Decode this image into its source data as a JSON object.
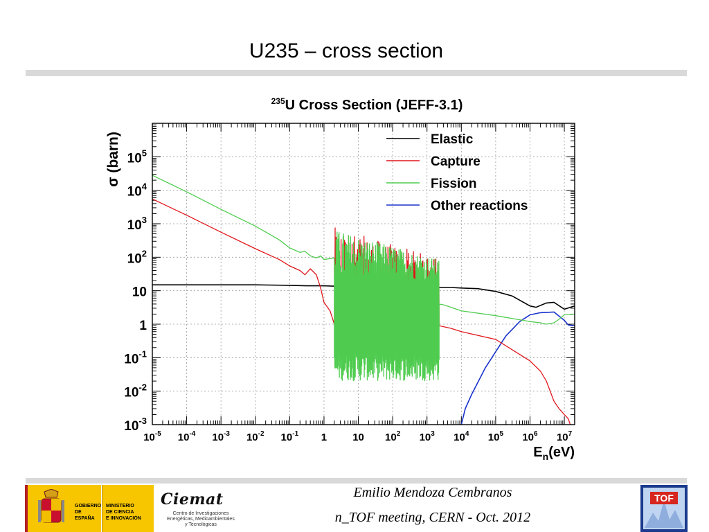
{
  "slide": {
    "title": "U235 – cross section",
    "author": "Emilio Mendoza Cembranos",
    "meeting": "n_TOF meeting, CERN - Oct. 2012",
    "logos": {
      "gobierno": "GOBIERNO\nDE ESPAÑA",
      "ministerio": "MINISTERIO\nDE CIENCIA\nE INNOVACIÓN",
      "ciemat": "Ciemat",
      "ciemat_sub": "Centro de Investigaciones\nEnergéticas, Medioambientales\ny Tecnológicas",
      "tof": "TOF"
    }
  },
  "chart_data": {
    "type": "line",
    "title_sup": "235",
    "title": "U Cross Section (JEFF-3.1)",
    "xlabel_main": "E",
    "xlabel_sub": "n",
    "xlabel_unit": "(eV)",
    "ylabel_symbol": "σ",
    "ylabel_unit": "(barn)",
    "x_scale": "log",
    "y_scale": "log",
    "xlim": [
      1e-05,
      20000000.0
    ],
    "ylim": [
      0.001,
      1000000.0
    ],
    "grid": true,
    "legend_position": "top-right",
    "x_ticks": [
      {
        "base": "10",
        "exp": "-5",
        "v": 1e-05
      },
      {
        "base": "10",
        "exp": "-4",
        "v": 0.0001
      },
      {
        "base": "10",
        "exp": "-3",
        "v": 0.001
      },
      {
        "base": "10",
        "exp": "-2",
        "v": 0.01
      },
      {
        "base": "10",
        "exp": "-1",
        "v": 0.1
      },
      {
        "base": "1",
        "exp": "",
        "v": 1
      },
      {
        "base": "10",
        "exp": "",
        "v": 10
      },
      {
        "base": "10",
        "exp": "2",
        "v": 100
      },
      {
        "base": "10",
        "exp": "3",
        "v": 1000
      },
      {
        "base": "10",
        "exp": "4",
        "v": 10000.0
      },
      {
        "base": "10",
        "exp": "5",
        "v": 100000.0
      },
      {
        "base": "10",
        "exp": "6",
        "v": 1000000.0
      },
      {
        "base": "10",
        "exp": "7",
        "v": 10000000.0
      }
    ],
    "y_ticks": [
      {
        "base": "10",
        "exp": "-3",
        "v": 0.001
      },
      {
        "base": "10",
        "exp": "-2",
        "v": 0.01
      },
      {
        "base": "10",
        "exp": "-1",
        "v": 0.1
      },
      {
        "base": "1",
        "exp": "",
        "v": 1
      },
      {
        "base": "10",
        "exp": "",
        "v": 10
      },
      {
        "base": "10",
        "exp": "2",
        "v": 100
      },
      {
        "base": "10",
        "exp": "3",
        "v": 1000
      },
      {
        "base": "10",
        "exp": "4",
        "v": 10000.0
      },
      {
        "base": "10",
        "exp": "5",
        "v": 100000.0
      }
    ],
    "series": [
      {
        "name": "Elastic",
        "color": "#000000",
        "x": [
          1e-05,
          0.001,
          0.01,
          0.1,
          0.3,
          1,
          3,
          10,
          100,
          1000,
          2250,
          5000,
          10000.0,
          30000.0,
          100000.0,
          300000.0,
          1000000.0,
          1500000.0,
          3000000.0,
          5000000.0,
          10000000.0,
          20000000.0
        ],
        "y": [
          15,
          15,
          15,
          14.5,
          14,
          14,
          13.5,
          13,
          13,
          12.5,
          12.5,
          12.5,
          12,
          11.5,
          9.5,
          7,
          3.5,
          3.2,
          4.3,
          4.5,
          2.8,
          3.5
        ]
      },
      {
        "name": "Capture",
        "color": "#e0161b",
        "x": [
          1e-05,
          0.0001,
          0.001,
          0.01,
          0.05,
          0.1,
          0.2,
          0.28,
          0.4,
          0.6,
          0.8,
          1,
          1.5,
          2.5,
          5,
          10,
          100,
          1000,
          2250,
          5000,
          10000.0,
          100000.0,
          1000000.0,
          2000000.0,
          3000000.0,
          5000000.0,
          7000000.0,
          10000000.0,
          13000000.0,
          16000000.0
        ],
        "y": [
          5500,
          1800,
          560,
          180,
          85,
          55,
          40,
          30,
          45,
          30,
          12,
          4.5,
          2.5,
          3,
          2.5,
          2.2,
          1.5,
          1.1,
          0.9,
          0.75,
          0.6,
          0.35,
          0.08,
          0.04,
          0.02,
          0.005,
          0.003,
          0.002,
          0.0015,
          0.0008
        ]
      },
      {
        "name": "Fission",
        "color": "#4fcc4f",
        "x": [
          1e-05,
          0.0001,
          0.001,
          0.01,
          0.05,
          0.1,
          0.2,
          0.28,
          0.4,
          0.6,
          0.8,
          1,
          2,
          2250,
          3000,
          5000,
          10000.0,
          100000.0,
          1000000.0,
          2000000.0,
          3000000.0,
          5000000.0,
          7000000.0,
          10000000.0,
          20000000.0
        ],
        "y": [
          28000,
          9000,
          2700,
          850,
          330,
          190,
          140,
          150,
          110,
          95,
          110,
          85,
          95,
          4,
          3.8,
          3.2,
          2.5,
          1.8,
          1.2,
          1.1,
          1.0,
          1.1,
          1.4,
          1.9,
          2.0
        ]
      },
      {
        "name": "Other reactions",
        "color": "#1a33cc",
        "x": [
          10000.0,
          13000.0,
          20000.0,
          50000.0,
          100000.0,
          200000.0,
          500000.0,
          1000000.0,
          2000000.0,
          5000000.0,
          10000000.0,
          13000000.0,
          20000000.0
        ],
        "y": [
          0.001,
          0.003,
          0.008,
          0.05,
          0.15,
          0.45,
          1.2,
          1.9,
          2.2,
          2.3,
          1.3,
          0.95,
          0.9
        ]
      }
    ],
    "resonance_region": {
      "x_range": [
        2,
        2250
      ],
      "capture_peak_y": 800,
      "fission_peak_y": 700
    }
  }
}
